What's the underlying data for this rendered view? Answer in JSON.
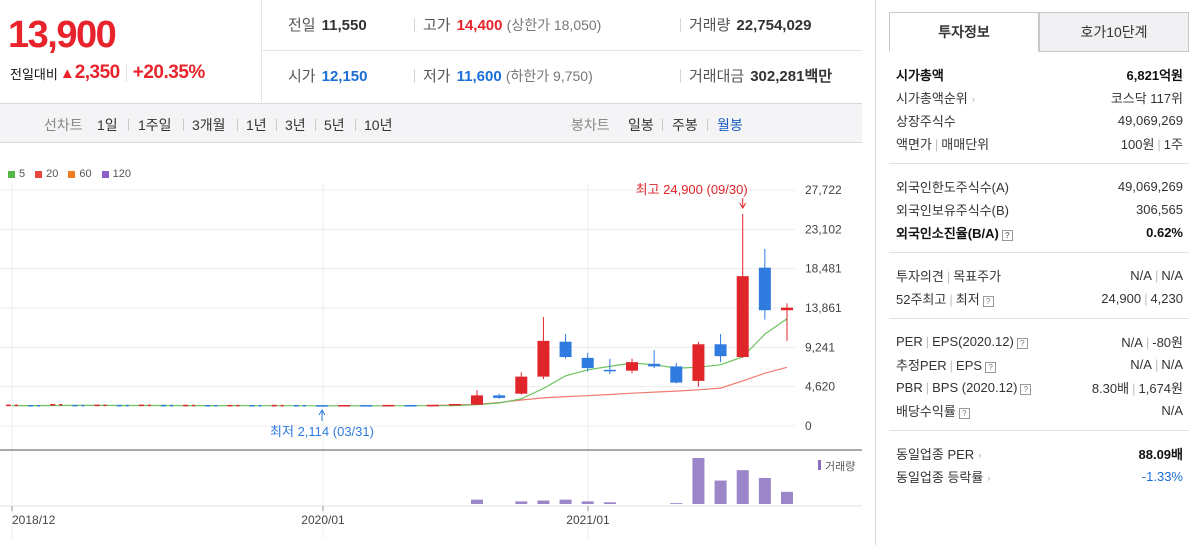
{
  "price": {
    "current": "13,900",
    "change_label": "전일대비",
    "change_arrow": "▲",
    "change_value": "2,350",
    "change_pct": "+20.35%"
  },
  "quotes": {
    "prev_label": "전일",
    "prev_value": "11,550",
    "high_label": "고가",
    "high_value": "14,400",
    "upper_limit": "(상한가 18,050)",
    "volume_label": "거래량",
    "volume_value": "22,754,029",
    "open_label": "시가",
    "open_value": "12,150",
    "low_label": "저가",
    "low_value": "11,600",
    "lower_limit": "(하한가 9,750)",
    "amount_label": "거래대금",
    "amount_value": "302,281",
    "amount_unit": "백만"
  },
  "periods": {
    "line_title": "선차트",
    "line_items": [
      "1일",
      "1주일",
      "3개월",
      "1년",
      "3년",
      "5년",
      "10년"
    ],
    "candle_title": "봉차트",
    "candle_items": [
      "일봉",
      "주봉",
      "월봉"
    ],
    "candle_active": "월봉"
  },
  "chart_data": {
    "type": "candlestick",
    "legend": [
      {
        "name": "5",
        "color": "#54b848"
      },
      {
        "name": "20",
        "color": "#e8473f"
      },
      {
        "name": "60",
        "color": "#ef7e22"
      },
      {
        "name": "120",
        "color": "#8a5fc8"
      }
    ],
    "y_ticks": [
      "27,722",
      "23,102",
      "18,481",
      "13,861",
      "9,241",
      "4,620",
      "0"
    ],
    "ylim": [
      0,
      27722
    ],
    "x_labels": [
      "2018/12",
      "2020/01",
      "2021/01"
    ],
    "max_annotation": "최고 24,900 (09/30)",
    "min_annotation": "최저 2,114 (03/31)",
    "volume_label": "거래량",
    "candles": [
      {
        "o": 2350,
        "c": 2430,
        "h": 2470,
        "l": 2330
      },
      {
        "o": 2420,
        "c": 2380,
        "h": 2470,
        "l": 2340
      },
      {
        "o": 2380,
        "c": 2500,
        "h": 2550,
        "l": 2350
      },
      {
        "o": 2450,
        "c": 2400,
        "h": 2800,
        "l": 2300
      },
      {
        "o": 2400,
        "c": 2430,
        "h": 2470,
        "l": 2360
      },
      {
        "o": 2420,
        "c": 2390,
        "h": 2450,
        "l": 2370
      },
      {
        "o": 2390,
        "c": 2420,
        "h": 2450,
        "l": 2370
      },
      {
        "o": 2420,
        "c": 2400,
        "h": 2450,
        "l": 2380
      },
      {
        "o": 2400,
        "c": 2410,
        "h": 2440,
        "l": 2380
      },
      {
        "o": 2410,
        "c": 2380,
        "h": 2430,
        "l": 2360
      },
      {
        "o": 2380,
        "c": 2390,
        "h": 2420,
        "l": 2360
      },
      {
        "o": 2390,
        "c": 2380,
        "h": 2420,
        "l": 2360
      },
      {
        "o": 2380,
        "c": 2390,
        "h": 2410,
        "l": 2360
      },
      {
        "o": 2390,
        "c": 2380,
        "h": 2410,
        "l": 2360
      },
      {
        "o": 2380,
        "c": 2360,
        "h": 2400,
        "l": 2114
      },
      {
        "o": 2360,
        "c": 2380,
        "h": 2400,
        "l": 2340
      },
      {
        "o": 2380,
        "c": 2370,
        "h": 2400,
        "l": 2350
      },
      {
        "o": 2370,
        "c": 2390,
        "h": 2410,
        "l": 2350
      },
      {
        "o": 2390,
        "c": 2380,
        "h": 2410,
        "l": 2360
      },
      {
        "o": 2380,
        "c": 2400,
        "h": 2420,
        "l": 2360
      },
      {
        "o": 2400,
        "c": 2500,
        "h": 2520,
        "l": 2390
      },
      {
        "o": 2500,
        "c": 3600,
        "h": 4200,
        "l": 2450
      },
      {
        "o": 3600,
        "c": 3300,
        "h": 3800,
        "l": 3200
      },
      {
        "o": 3800,
        "c": 5800,
        "h": 6300,
        "l": 3700
      },
      {
        "o": 5800,
        "c": 10000,
        "h": 12800,
        "l": 5500
      },
      {
        "o": 9900,
        "c": 8100,
        "h": 10800,
        "l": 7900
      },
      {
        "o": 8000,
        "c": 6800,
        "h": 8600,
        "l": 6400
      },
      {
        "o": 6600,
        "c": 6500,
        "h": 7900,
        "l": 6100
      },
      {
        "o": 6500,
        "c": 7500,
        "h": 7900,
        "l": 6200
      },
      {
        "o": 7300,
        "c": 7000,
        "h": 8900,
        "l": 6800
      },
      {
        "o": 7000,
        "c": 5100,
        "h": 7400,
        "l": 5000
      },
      {
        "o": 5300,
        "c": 9600,
        "h": 9900,
        "l": 4600
      },
      {
        "o": 9600,
        "c": 8200,
        "h": 10800,
        "l": 7500
      },
      {
        "o": 8100,
        "c": 17600,
        "h": 24900,
        "l": 8000
      },
      {
        "o": 18600,
        "c": 13600,
        "h": 20800,
        "l": 12500
      },
      {
        "o": 13600,
        "c": 13900,
        "h": 14400,
        "l": 10000
      }
    ],
    "ma5": [
      2400,
      2400,
      2410,
      2420,
      2420,
      2410,
      2410,
      2405,
      2400,
      2400,
      2395,
      2390,
      2385,
      2380,
      2370,
      2365,
      2360,
      2370,
      2380,
      2390,
      2400,
      2500,
      2700,
      3200,
      4400,
      5900,
      6600,
      7000,
      7400,
      7200,
      6800,
      6900,
      7200,
      8100,
      10800,
      12600
    ],
    "ma20": [
      null,
      null,
      null,
      null,
      null,
      null,
      null,
      null,
      null,
      null,
      null,
      null,
      null,
      null,
      null,
      null,
      null,
      null,
      null,
      2420,
      2460,
      2560,
      2750,
      3050,
      3300,
      3450,
      3560,
      3700,
      3850,
      3980,
      4100,
      4250,
      4450,
      5300,
      6200,
      6900
    ],
    "volume": [
      0,
      0,
      0,
      0,
      0,
      0,
      0,
      0,
      0,
      0,
      0,
      0,
      0,
      0,
      0,
      0,
      0,
      0,
      0,
      0,
      0,
      5,
      0,
      3,
      4,
      5,
      3,
      2,
      0,
      0,
      1,
      53,
      27,
      39,
      30,
      14
    ]
  },
  "tabs": [
    "투자정보",
    "호가10단계"
  ],
  "info": {
    "sections": [
      [
        {
          "k": "시가총액",
          "v": "6,821억원",
          "bold": true
        },
        {
          "k": "시가총액순위",
          "v": "코스닥 117위",
          "caret": true
        },
        {
          "k": "상장주식수",
          "v": "49,069,269"
        },
        {
          "k": "액면가 | 매매단위",
          "v": "100원 | 1주"
        }
      ],
      [
        {
          "k": "외국인한도주식수(A)",
          "v": "49,069,269"
        },
        {
          "k": "외국인보유주식수(B)",
          "v": "306,565"
        },
        {
          "k": "외국인소진율(B/A)",
          "v": "0.62%",
          "bold": true,
          "q": true
        }
      ],
      [
        {
          "k": "투자의견 | 목표주가",
          "v": "N/A | N/A"
        },
        {
          "k": "52주최고 | 최저",
          "v": "24,900 | 4,230",
          "q": true
        }
      ],
      [
        {
          "k": "PER | EPS(2020.12)",
          "v": "N/A | -80원",
          "q": true
        },
        {
          "k": "추정PER | EPS",
          "v": "N/A | N/A",
          "q": true
        },
        {
          "k": "PBR | BPS (2020.12)",
          "v": "8.30배 | 1,674원",
          "q": true
        },
        {
          "k": "배당수익률",
          "v": "N/A",
          "q": true
        }
      ],
      [
        {
          "k": "동일업종 PER",
          "v": "88.09배",
          "vbold": true,
          "caret": true
        },
        {
          "k": "동일업종 등락률",
          "v": "-1.33%",
          "blue": true,
          "caret": true
        }
      ]
    ]
  }
}
